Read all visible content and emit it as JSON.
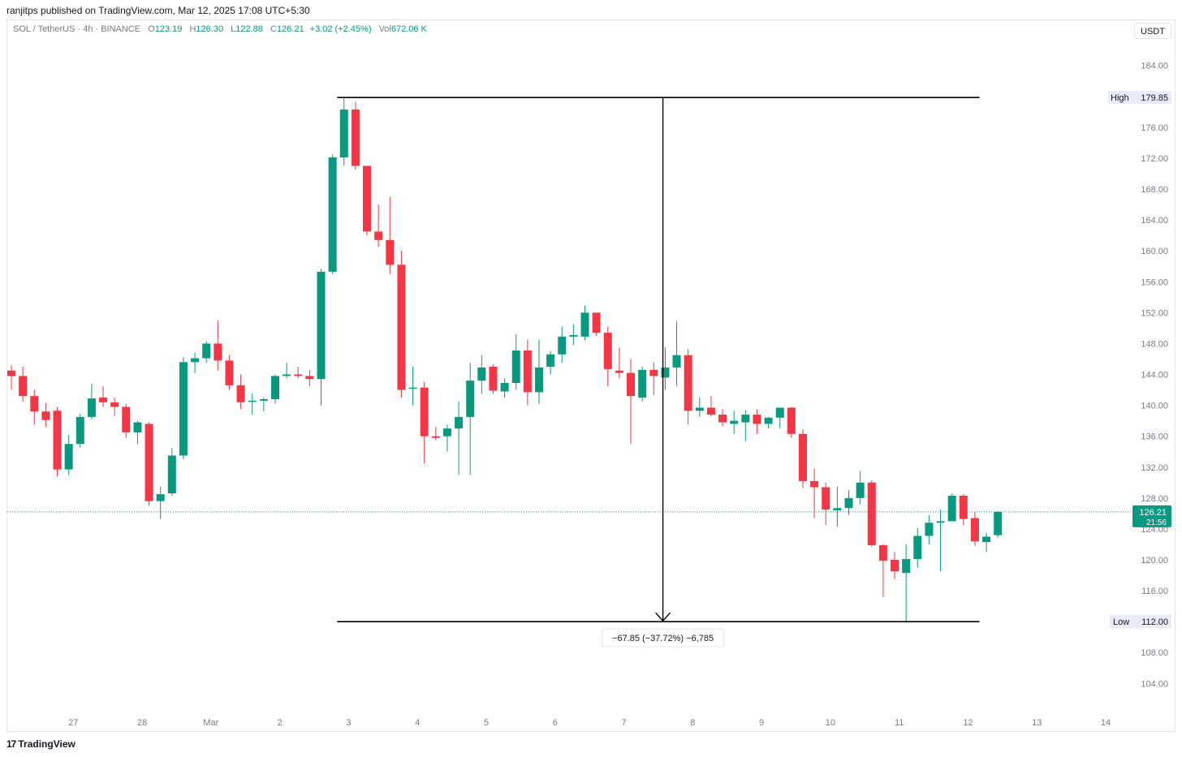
{
  "header": {
    "published_text": "ranjitps published on TradingView.com, Mar 12, 2025 17:08 UTC+5:30"
  },
  "legend": {
    "symbol": "SOL / TetherUS · 4h · BINANCE",
    "open_label": "O",
    "open": "123.19",
    "high_label": "H",
    "high": "126.30",
    "low_label": "L",
    "low": "122.88",
    "close_label": "C",
    "close": "126.21",
    "change": "+3.02 (+2.45%)",
    "vol_label": "Vol",
    "volume": "672.06 K"
  },
  "currency_button": "USDT",
  "footer": {
    "logo_glyph": "17",
    "brand": "TradingView"
  },
  "colors": {
    "up": "#089981",
    "down": "#f23645",
    "axis_text": "#787b86",
    "line": "#000000"
  },
  "chart_data": {
    "type": "candlestick",
    "symbol": "SOL/USDT",
    "interval": "4h",
    "ylim": [
      100,
      188
    ],
    "y_ticks": [
      "184.00",
      "176.00",
      "172.00",
      "168.00",
      "164.00",
      "160.00",
      "156.00",
      "152.00",
      "148.00",
      "144.00",
      "140.00",
      "136.00",
      "132.00",
      "128.00",
      "124.00",
      "120.00",
      "116.00",
      "108.00",
      "104.00"
    ],
    "x_ticks": [
      {
        "label": "27",
        "idx": 5.4
      },
      {
        "label": "28",
        "idx": 11.4
      },
      {
        "label": "Mar",
        "idx": 17.4
      },
      {
        "label": "2",
        "idx": 23.4
      },
      {
        "label": "3",
        "idx": 29.4
      },
      {
        "label": "4",
        "idx": 35.4
      },
      {
        "label": "5",
        "idx": 41.4
      },
      {
        "label": "6",
        "idx": 47.4
      },
      {
        "label": "7",
        "idx": 53.4
      },
      {
        "label": "8",
        "idx": 59.4
      },
      {
        "label": "9",
        "idx": 65.4
      },
      {
        "label": "10",
        "idx": 71.4
      },
      {
        "label": "11",
        "idx": 77.4
      },
      {
        "label": "12",
        "idx": 83.4
      },
      {
        "label": "13",
        "idx": 89.4
      },
      {
        "label": "14",
        "idx": 95.4
      }
    ],
    "candles": [
      [
        144.5,
        145.2,
        142.0,
        143.8
      ],
      [
        143.8,
        145.0,
        140.5,
        141.2
      ],
      [
        141.2,
        142.0,
        137.5,
        139.2
      ],
      [
        139.2,
        140.3,
        137.2,
        138.1
      ],
      [
        139.3,
        139.8,
        130.8,
        131.7
      ],
      [
        131.7,
        136.2,
        131.0,
        135.0
      ],
      [
        135.0,
        138.9,
        134.5,
        138.5
      ],
      [
        138.5,
        142.8,
        138.2,
        140.9
      ],
      [
        141.0,
        142.5,
        139.8,
        140.4
      ],
      [
        140.4,
        141.0,
        138.6,
        139.8
      ],
      [
        139.8,
        140.2,
        135.8,
        136.5
      ],
      [
        136.5,
        138.0,
        135.0,
        137.8
      ],
      [
        137.6,
        137.8,
        127.0,
        127.6
      ],
      [
        127.6,
        129.5,
        125.3,
        128.5
      ],
      [
        128.6,
        134.5,
        128.3,
        133.5
      ],
      [
        133.5,
        146.2,
        133.0,
        145.6
      ],
      [
        145.6,
        146.8,
        144.2,
        146.1
      ],
      [
        146.1,
        148.3,
        145.5,
        148.0
      ],
      [
        148.0,
        151.0,
        144.5,
        145.8
      ],
      [
        145.8,
        146.5,
        142.0,
        142.6
      ],
      [
        142.6,
        144.0,
        139.5,
        140.4
      ],
      [
        140.5,
        141.5,
        138.8,
        140.6
      ],
      [
        140.6,
        141.0,
        139.2,
        140.8
      ],
      [
        140.8,
        144.0,
        140.2,
        143.8
      ],
      [
        143.8,
        145.5,
        143.5,
        144.0
      ],
      [
        144.0,
        145.0,
        143.5,
        143.8
      ],
      [
        143.8,
        144.6,
        142.5,
        143.4
      ],
      [
        143.4,
        157.7,
        140.0,
        157.3
      ],
      [
        157.3,
        172.5,
        157.0,
        172.1
      ],
      [
        172.1,
        179.85,
        171.0,
        178.3
      ],
      [
        178.3,
        179.3,
        170.5,
        171.0
      ],
      [
        171.0,
        170.6,
        162.0,
        162.5
      ],
      [
        162.5,
        166.0,
        160.5,
        161.4
      ],
      [
        161.4,
        167.0,
        157.0,
        158.2
      ],
      [
        158.2,
        160.0,
        141.0,
        142.0
      ],
      [
        142.2,
        145.0,
        140.0,
        142.3
      ],
      [
        142.3,
        143.0,
        132.5,
        136.0
      ],
      [
        136.0,
        137.2,
        135.5,
        135.8
      ],
      [
        136.0,
        137.5,
        134.0,
        137.0
      ],
      [
        137.0,
        140.5,
        131.0,
        138.5
      ],
      [
        138.5,
        145.5,
        131.0,
        143.2
      ],
      [
        143.2,
        146.5,
        141.5,
        144.9
      ],
      [
        145.0,
        145.3,
        141.5,
        141.9
      ],
      [
        141.8,
        143.5,
        141.0,
        142.9
      ],
      [
        142.9,
        149.2,
        142.0,
        147.1
      ],
      [
        147.1,
        148.5,
        140.0,
        141.7
      ],
      [
        141.7,
        148.5,
        140.2,
        144.9
      ],
      [
        145.0,
        147.0,
        144.0,
        146.6
      ],
      [
        146.6,
        150.2,
        145.5,
        148.9
      ],
      [
        148.9,
        150.5,
        147.8,
        149.1
      ],
      [
        148.9,
        152.9,
        148.4,
        152.0
      ],
      [
        152.0,
        152.0,
        149.0,
        149.4
      ],
      [
        149.4,
        150.2,
        142.5,
        144.7
      ],
      [
        144.5,
        147.5,
        143.5,
        144.2
      ],
      [
        144.2,
        146.0,
        135.0,
        141.2
      ],
      [
        141.0,
        145.0,
        140.5,
        144.6
      ],
      [
        144.6,
        145.6,
        141.3,
        143.8
      ],
      [
        143.6,
        147.5,
        142.0,
        144.9
      ],
      [
        144.9,
        150.9,
        142.5,
        146.5
      ],
      [
        146.5,
        147.3,
        137.5,
        139.3
      ],
      [
        139.3,
        141.0,
        138.5,
        139.7
      ],
      [
        139.7,
        141.2,
        138.6,
        138.8
      ],
      [
        138.8,
        139.5,
        137.3,
        137.8
      ],
      [
        137.6,
        139.3,
        136.3,
        138.0
      ],
      [
        137.8,
        139.4,
        135.4,
        138.8
      ],
      [
        138.8,
        139.5,
        136.3,
        137.6
      ],
      [
        137.6,
        138.5,
        137.0,
        138.4
      ],
      [
        138.4,
        139.6,
        137.0,
        139.7
      ],
      [
        139.7,
        139.8,
        135.8,
        136.3
      ],
      [
        136.3,
        136.9,
        129.3,
        130.2
      ],
      [
        130.2,
        131.8,
        125.4,
        129.4
      ],
      [
        129.4,
        130.0,
        124.5,
        126.5
      ],
      [
        126.4,
        129.5,
        124.3,
        126.7
      ],
      [
        126.7,
        129.0,
        125.8,
        128.0
      ],
      [
        128.0,
        131.5,
        127.2,
        130.0
      ],
      [
        130.0,
        130.3,
        121.7,
        121.9
      ],
      [
        121.9,
        122.0,
        115.2,
        119.9
      ],
      [
        120.0,
        121.0,
        117.5,
        118.5
      ],
      [
        118.3,
        122.0,
        112.0,
        120.1
      ],
      [
        120.1,
        124.1,
        119.0,
        123.1
      ],
      [
        123.1,
        125.8,
        122.0,
        124.8
      ],
      [
        124.8,
        126.5,
        118.5,
        125.0
      ],
      [
        125.0,
        128.6,
        125.0,
        128.3
      ],
      [
        128.3,
        128.5,
        124.5,
        125.3
      ],
      [
        125.4,
        126.2,
        121.8,
        122.4
      ],
      [
        122.3,
        123.5,
        121.0,
        123.0
      ],
      [
        123.19,
        126.3,
        122.88,
        126.21
      ]
    ],
    "current_price": "126.21",
    "countdown": "21:56",
    "high_label": "High",
    "high_value": "179.85",
    "low_label": "Low",
    "low_value": "112.00",
    "measure": {
      "start_idx": 28.4,
      "end_idx": 84.4,
      "mid_idx": 56.8,
      "high": 179.85,
      "low": 112.0,
      "label": "−67.85 (−37.72%) −6,785"
    }
  }
}
